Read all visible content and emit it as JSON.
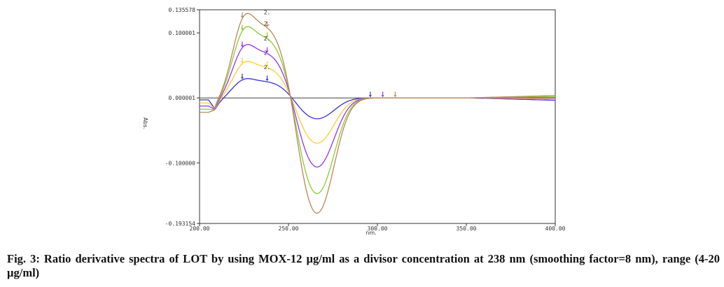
{
  "caption": "Fig. 3: Ratio derivative spectra of LOT by using MOX-12 µg/ml as a divisor concentration at 238 nm (smoothing factor=8 nm), range (4-20 µg/ml)",
  "chart_data": {
    "type": "line",
    "xlabel": "nm.",
    "ylabel": "Abs.",
    "xlim": [
      200,
      400
    ],
    "ylim": [
      -0.193154,
      0.135578
    ],
    "x_ticks": [
      "200.00",
      "250.00",
      "300.00",
      "350.00",
      "400.00"
    ],
    "y_ticks": [
      "0.135578",
      "0.100001",
      "0.000001",
      "-0.100000",
      "-0.193154"
    ],
    "y_tick_values": [
      0.135578,
      0.100001,
      1e-06,
      -0.1,
      -0.193154
    ],
    "peak_label": "2.",
    "series": [
      {
        "color": "#3333dd",
        "values": [
          0.025,
          -0.03
        ]
      },
      {
        "color": "#ffcc33",
        "values": [
          0.047,
          -0.065
        ]
      },
      {
        "color": "#9933ee",
        "values": [
          0.069,
          -0.099
        ]
      },
      {
        "color": "#88cc33",
        "values": [
          0.092,
          -0.137
        ]
      },
      {
        "color": "#bb8855",
        "values": [
          0.109,
          -0.165
        ]
      }
    ]
  }
}
